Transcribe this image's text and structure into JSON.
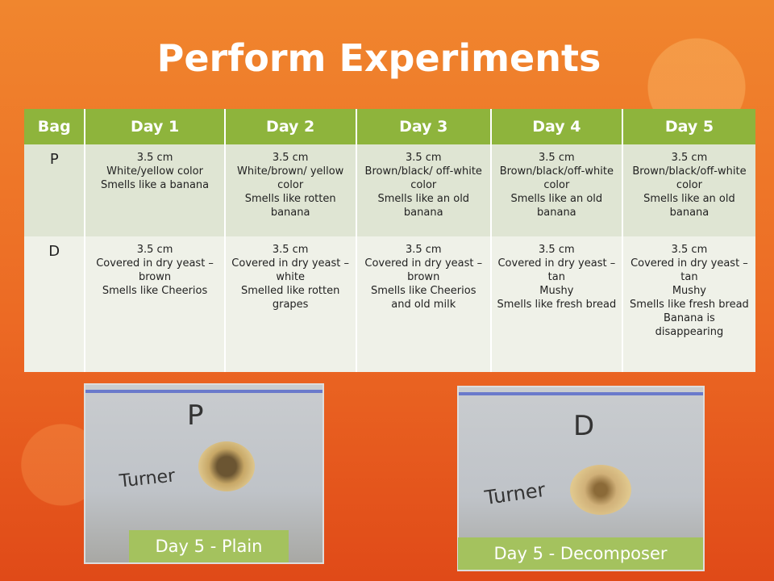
{
  "title": "Perform Experiments",
  "table": {
    "header": [
      "Bag",
      "Day 1",
      "Day 2",
      "Day 3",
      "Day 4",
      "Day 5"
    ],
    "rows": [
      [
        "P",
        [
          "3.5 cm",
          "White/yellow color",
          "Smells like a banana"
        ],
        [
          "3.5 cm",
          "White/brown/ yellow color",
          "Smells like rotten banana"
        ],
        [
          "3.5 cm",
          "Brown/black/ off-white color",
          "Smells like an old banana"
        ],
        [
          "3.5 cm",
          "Brown/black/off-white color",
          "Smells like an old banana"
        ],
        [
          "3.5 cm",
          "Brown/black/off-white color",
          "Smells like an old banana"
        ]
      ],
      [
        "D",
        [
          "3.5 cm",
          "Covered in dry yeast – brown",
          "Smells like Cheerios"
        ],
        [
          "3.5 cm",
          "Covered in dry yeast – white",
          "Smelled like rotten grapes"
        ],
        [
          "3.5 cm",
          "Covered in dry yeast – brown",
          "Smells like Cheerios and old milk"
        ],
        [
          "3.5 cm",
          "Covered in dry yeast – tan",
          "Mushy",
          "Smells like fresh bread"
        ],
        [
          "3.5 cm",
          "Covered in dry yeast – tan",
          "Mushy",
          "Smells like fresh bread",
          "Banana is disappearing"
        ]
      ]
    ]
  },
  "photos": [
    {
      "bag_label": "P",
      "name": "Turner",
      "caption": "Day 5 - Plain"
    },
    {
      "bag_label": "D",
      "name": "Turner",
      "caption": "Day 5 - Decomposer"
    }
  ]
}
